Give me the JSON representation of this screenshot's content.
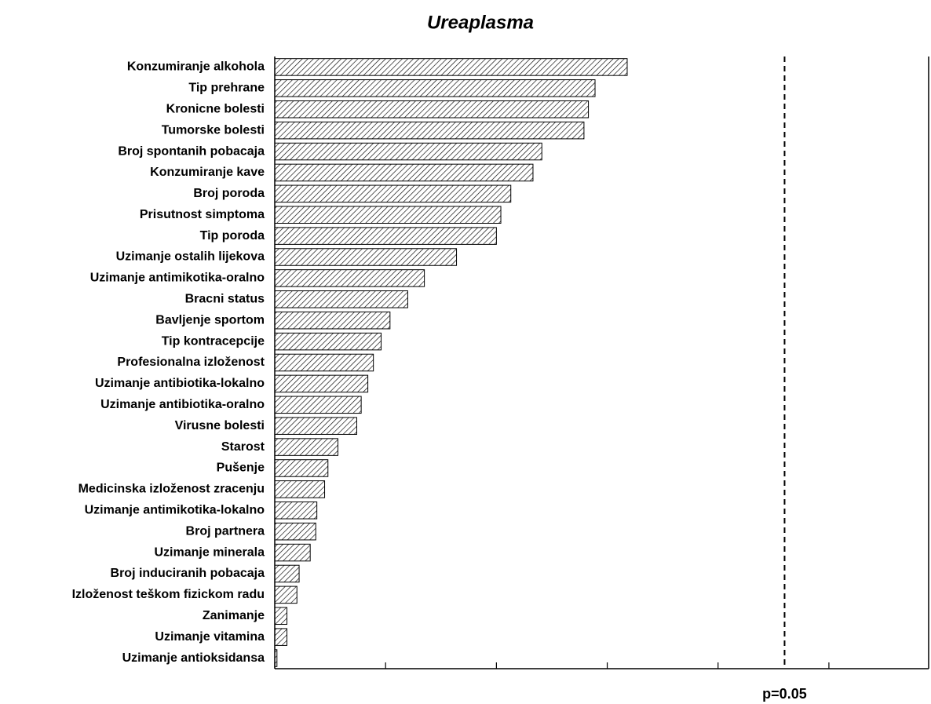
{
  "chart_data": {
    "type": "bar",
    "orientation": "horizontal",
    "title": "Ureaplasma",
    "categories": [
      "Konzumiranje alkohola",
      "Tip prehrane",
      "Kronicne bolesti",
      "Tumorske bolesti",
      "Broj spontanih pobacaja",
      "Konzumiranje kave",
      "Broj poroda",
      "Prisutnost simptoma",
      "Tip poroda",
      "Uzimanje ostalih lijekova",
      "Uzimanje antimikotika-oralno",
      "Bracni status",
      "Bavljenje sportom",
      "Tip kontracepcije",
      "Profesionalna izloženost",
      "Uzimanje antibiotika-lokalno",
      "Uzimanje antibiotika-oralno",
      "Virusne bolesti",
      "Starost",
      "Pušenje",
      "Medicinska izloženost zracenju",
      "Uzimanje antimikotika-lokalno",
      "Broj partnera",
      "Uzimanje minerala",
      "Broj induciranih pobacaja",
      "Izloženost teškom fizickom radu",
      "Zanimanje",
      "Uzimanje vitamina",
      "Uzimanje antioksidansa"
    ],
    "values": [
      3.18,
      2.89,
      2.83,
      2.79,
      2.41,
      2.33,
      2.13,
      2.04,
      2.0,
      1.64,
      1.35,
      1.2,
      1.04,
      0.96,
      0.89,
      0.84,
      0.78,
      0.74,
      0.57,
      0.48,
      0.45,
      0.38,
      0.37,
      0.32,
      0.22,
      0.2,
      0.11,
      0.11,
      0.02
    ],
    "color": "#000000",
    "xlim": [
      0,
      5.9
    ],
    "xticks": [
      0,
      1,
      2,
      3,
      4,
      5
    ],
    "reference_line": {
      "value": 4.6,
      "label": "p=0.05"
    }
  }
}
